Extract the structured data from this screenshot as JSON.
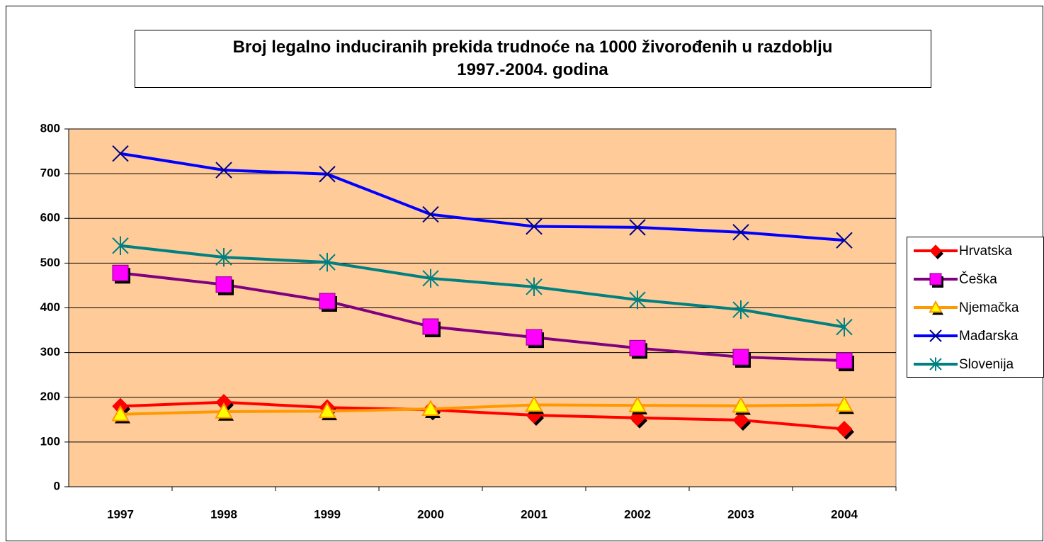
{
  "chart_data": {
    "type": "line",
    "title": "Broj legalno induciranih prekida trudnoće na 1000 živorođenih u razdoblju 1997.-2004. godina",
    "categories": [
      "1997",
      "1998",
      "1999",
      "2000",
      "2001",
      "2002",
      "2003",
      "2004"
    ],
    "series": [
      {
        "name": "Hrvatska",
        "color": "#ff0000",
        "marker": "diamond",
        "marker_color": "#ff0000",
        "values": [
          180,
          189,
          177,
          172,
          160,
          154,
          149,
          129
        ]
      },
      {
        "name": "Češka",
        "color": "#800080",
        "marker": "square",
        "marker_color": "#ff00ff",
        "values": [
          478,
          452,
          415,
          358,
          334,
          310,
          290,
          282
        ]
      },
      {
        "name": "Njemačka",
        "color": "#ff9900",
        "marker": "triangle",
        "marker_color": "#ffff00",
        "values": [
          162,
          168,
          169,
          174,
          183,
          182,
          181,
          183
        ]
      },
      {
        "name": "Mađarska",
        "color": "#0000ff",
        "marker": "x",
        "marker_color": "#000080",
        "values": [
          745,
          708,
          699,
          609,
          582,
          580,
          569,
          551
        ]
      },
      {
        "name": "Slovenija",
        "color": "#008080",
        "marker": "asterisk",
        "marker_color": "#008080",
        "values": [
          539,
          513,
          502,
          466,
          447,
          418,
          396,
          357
        ]
      }
    ],
    "ylim": [
      0,
      800
    ],
    "yticks": [
      0,
      100,
      200,
      300,
      400,
      500,
      600,
      700,
      800
    ],
    "grid": true,
    "legend": "right",
    "plot_background": "#ffcc99"
  }
}
